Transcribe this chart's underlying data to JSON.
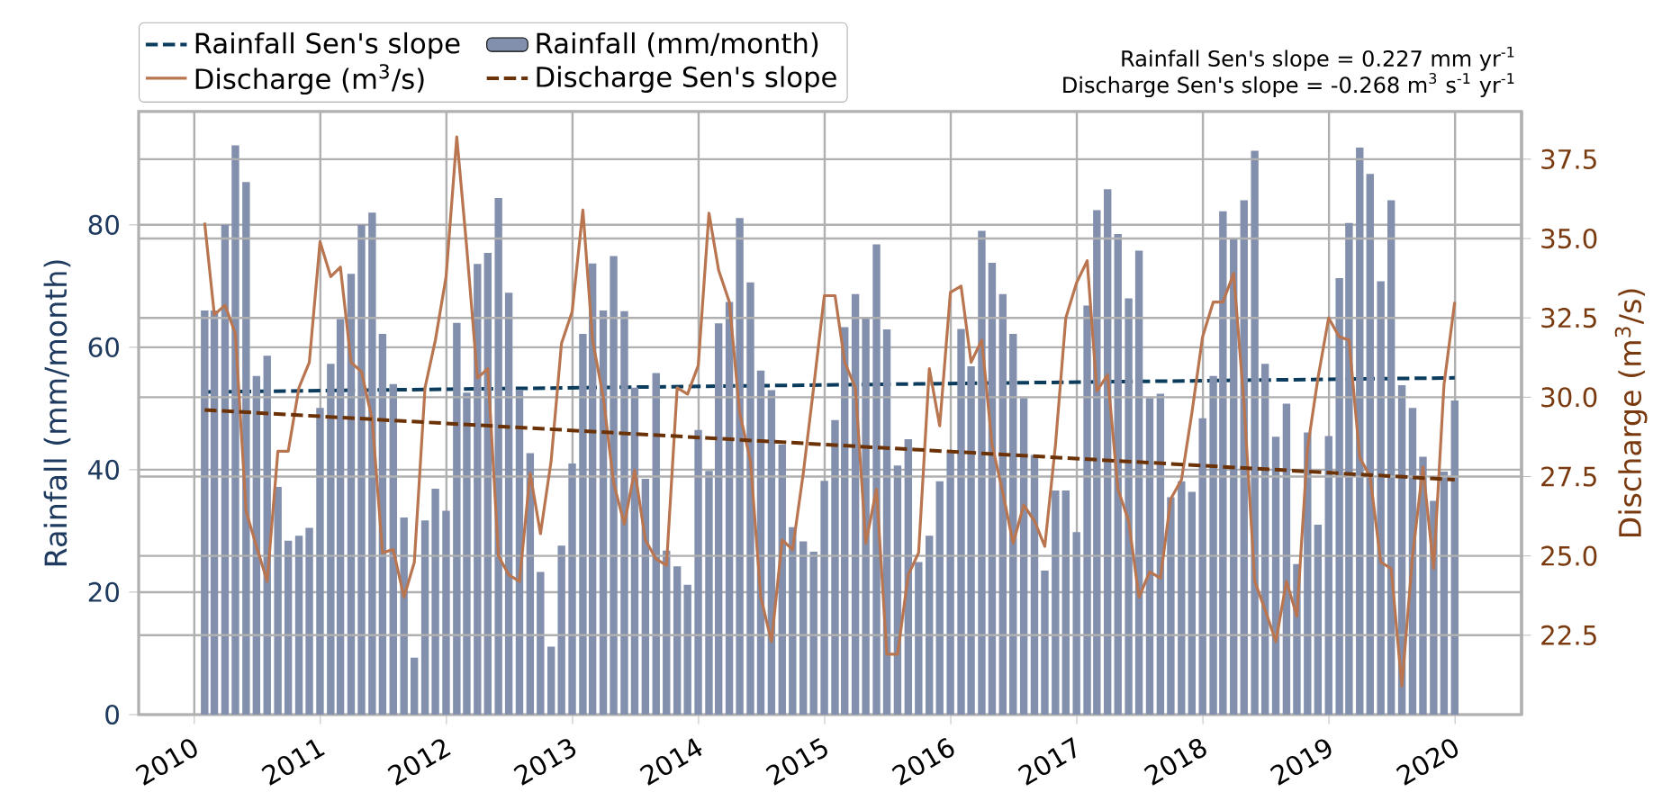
{
  "chart_data": {
    "type": "bar",
    "ylabel": "Rainfall (mm/month)",
    "y2label": "Discharge (m$^{3}$/s)",
    "x": [
      "2010-01-31",
      "2010-02-28",
      "2010-03-31",
      "2010-04-30",
      "2010-05-31",
      "2010-06-30",
      "2010-07-31",
      "2010-08-31",
      "2010-09-30",
      "2010-10-31",
      "2010-11-30",
      "2010-12-31",
      "2011-01-31",
      "2011-02-28",
      "2011-03-31",
      "2011-04-30",
      "2011-05-31",
      "2011-06-30",
      "2011-07-31",
      "2011-08-31",
      "2011-09-30",
      "2011-10-31",
      "2011-11-30",
      "2011-12-31",
      "2012-01-31",
      "2012-02-29",
      "2012-03-31",
      "2012-04-30",
      "2012-05-31",
      "2012-06-30",
      "2012-07-31",
      "2012-08-31",
      "2012-09-30",
      "2012-10-31",
      "2012-11-30",
      "2012-12-31",
      "2013-01-31",
      "2013-02-28",
      "2013-03-31",
      "2013-04-30",
      "2013-05-31",
      "2013-06-30",
      "2013-07-31",
      "2013-08-31",
      "2013-09-30",
      "2013-10-31",
      "2013-11-30",
      "2013-12-31",
      "2014-01-31",
      "2014-02-28",
      "2014-03-31",
      "2014-04-30",
      "2014-05-31",
      "2014-06-30",
      "2014-07-31",
      "2014-08-31",
      "2014-09-30",
      "2014-10-31",
      "2014-11-30",
      "2014-12-31",
      "2015-01-31",
      "2015-02-28",
      "2015-03-31",
      "2015-04-30",
      "2015-05-31",
      "2015-06-30",
      "2015-07-31",
      "2015-08-31",
      "2015-09-30",
      "2015-10-31",
      "2015-11-30",
      "2015-12-31",
      "2016-01-31",
      "2016-02-29",
      "2016-03-31",
      "2016-04-30",
      "2016-05-31",
      "2016-06-30",
      "2016-07-31",
      "2016-08-31",
      "2016-09-30",
      "2016-10-31",
      "2016-11-30",
      "2016-12-31",
      "2017-01-31",
      "2017-02-28",
      "2017-03-31",
      "2017-04-30",
      "2017-05-31",
      "2017-06-30",
      "2017-07-31",
      "2017-08-31",
      "2017-09-30",
      "2017-10-31",
      "2017-11-30",
      "2017-12-31",
      "2018-01-31",
      "2018-02-28",
      "2018-03-31",
      "2018-04-30",
      "2018-05-31",
      "2018-06-30",
      "2018-07-31",
      "2018-08-31",
      "2018-09-30",
      "2018-10-31",
      "2018-11-30",
      "2018-12-31",
      "2019-01-31",
      "2019-02-28",
      "2019-03-31",
      "2019-04-30",
      "2019-05-31",
      "2019-06-30",
      "2019-07-31",
      "2019-08-31",
      "2019-09-30",
      "2019-10-31",
      "2019-11-30",
      "2019-12-31"
    ],
    "series": [
      {
        "name": "Rainfall Sen's slope",
        "type": "line",
        "line_style": "dashed",
        "color": "#0b3c5d",
        "x": [
          "2010-01-31",
          "2019-12-31"
        ],
        "values": [
          52.7,
          55.0
        ]
      },
      {
        "name": "Rainfall (mm/month)",
        "color": "#8390ad",
        "values": [
          66,
          66,
          80,
          93,
          87,
          55.3,
          58.6,
          37.2,
          28.4,
          29.2,
          30.5,
          50.1,
          57.3,
          64.6,
          72,
          80,
          82,
          62.2,
          54,
          32.2,
          9.3,
          31.7,
          36.9,
          33.3,
          64,
          52.6,
          73.6,
          75.4,
          84.4,
          68.9,
          53,
          42.7,
          23.3,
          11.1,
          27.6,
          41,
          62.2,
          73.7,
          66,
          74.9,
          65.9,
          53.4,
          38.5,
          55.8,
          26.8,
          24.2,
          21.2,
          46.5,
          39.8,
          63.9,
          67.4,
          81.1,
          70.6,
          56.2,
          53,
          44.1,
          30.6,
          28.3,
          26.6,
          38.2,
          48.1,
          63.3,
          68.7,
          64.8,
          76.8,
          62.9,
          40.7,
          45,
          24.9,
          29.2,
          38.1,
          42.7,
          63,
          56.9,
          79,
          73.8,
          68.7,
          62.2,
          51.7,
          42.4,
          23.5,
          36.6,
          36.6,
          29.8,
          66.8,
          82.4,
          85.8,
          78.5,
          68,
          75.8,
          51.7,
          52.4,
          35.5,
          38.1,
          36.4,
          48.4,
          55.3,
          82.2,
          77.9,
          84,
          92.1,
          57.3,
          45.4,
          50.8,
          24.6,
          46.1,
          31,
          45.5,
          71.3,
          80.3,
          92.6,
          88.3,
          70.8,
          84,
          53.8,
          50.1,
          42.1,
          34.9,
          39.7,
          51.3
        ]
      },
      {
        "name": "Discharge (m$^{3}$/s)",
        "type": "line",
        "axis": "y2",
        "line_style": "solid",
        "color": "#b8754f",
        "values": [
          35.5,
          32.6,
          32.9,
          32.0,
          26.4,
          25.3,
          24.2,
          28.3,
          28.3,
          30.3,
          31.1,
          34.9,
          33.8,
          34.1,
          31.1,
          30.8,
          29.3,
          25.1,
          25.2,
          23.7,
          24.8,
          30.3,
          31.8,
          33.8,
          38.2,
          34.7,
          30.6,
          30.9,
          25.0,
          24.4,
          24.2,
          27.6,
          25.7,
          28.0,
          31.7,
          32.7,
          35.9,
          31.8,
          30.0,
          27.3,
          26.0,
          27.7,
          25.5,
          24.9,
          24.7,
          30.3,
          30.1,
          31.0,
          35.8,
          34.0,
          33.0,
          29.5,
          28.0,
          23.7,
          22.3,
          25.5,
          25.2,
          27.6,
          30.3,
          33.2,
          33.2,
          31.1,
          30.3,
          25.4,
          27.1,
          21.9,
          21.9,
          24.4,
          25.1,
          30.9,
          29.1,
          33.3,
          33.5,
          31.1,
          31.8,
          28.5,
          27.0,
          25.4,
          26.6,
          26.1,
          25.3,
          28.5,
          32.5,
          33.6,
          34.3,
          30.2,
          30.7,
          27.1,
          26.1,
          23.7,
          24.5,
          24.3,
          26.8,
          27.4,
          29.5,
          31.9,
          33.0,
          33.0,
          33.9,
          29.8,
          24.2,
          23.3,
          22.3,
          24.2,
          23.1,
          28.4,
          30.6,
          32.5,
          31.9,
          31.8,
          28.1,
          27.5,
          24.8,
          24.6,
          20.9,
          25.0,
          27.8,
          24.6,
          30.4,
          33.0
        ]
      },
      {
        "name": "Discharge Sen's slope",
        "type": "line",
        "axis": "y2",
        "line_style": "dashed",
        "color": "#6b3208",
        "x": [
          "2010-01-31",
          "2019-12-31"
        ],
        "values": [
          29.6,
          27.4
        ]
      }
    ],
    "xlim": [
      "2009-07-24",
      "2020-07-12"
    ],
    "xticks": [
      "2010",
      "2011",
      "2012",
      "2013",
      "2014",
      "2015",
      "2016",
      "2017",
      "2018",
      "2019",
      "2020"
    ],
    "ylim": [
      0,
      98.5
    ],
    "yticks": [
      0,
      20,
      40,
      60,
      80
    ],
    "y2lim": [
      20,
      39
    ],
    "y2ticks": [
      {
        "value": 22.5,
        "label": "22.5"
      },
      {
        "value": 25,
        "label": "25.0"
      },
      {
        "value": 27.5,
        "label": "27.5"
      },
      {
        "value": 30,
        "label": "30.0"
      },
      {
        "value": 32.5,
        "label": "32.5"
      },
      {
        "value": 35,
        "label": "35.0"
      },
      {
        "value": 37.5,
        "label": "37.5"
      }
    ],
    "grid": true,
    "legend": "top",
    "annotations": [
      "Rainfall Sen's slope = 0.227 mm yr$^{-1}$",
      "Discharge Sen's slope = -0.268 m$^{3}$ s$^{-1}$ yr$^{-1}$"
    ]
  }
}
